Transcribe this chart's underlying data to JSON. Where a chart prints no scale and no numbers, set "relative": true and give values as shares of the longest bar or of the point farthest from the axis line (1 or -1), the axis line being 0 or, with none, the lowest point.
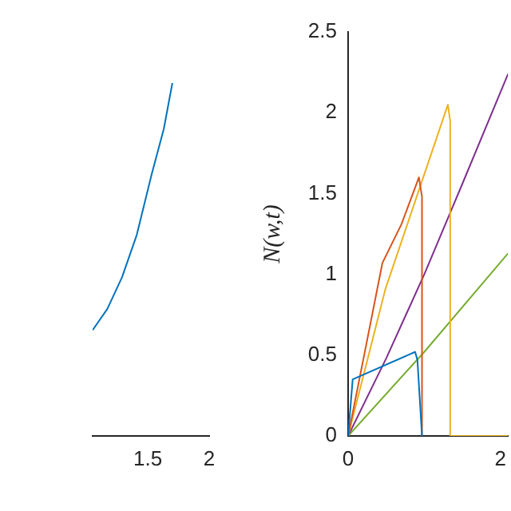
{
  "chart_data": [
    {
      "type": "line",
      "relative": true,
      "xlim": [
        1.05,
        2
      ],
      "xticks": [
        1.5,
        2
      ],
      "tick_labels": "x",
      "grid": false,
      "legend": false,
      "series": [
        {
          "color": "#0072bd",
          "x": [
            1.05,
            1.17,
            1.29,
            1.41,
            1.53,
            1.63,
            1.7
          ],
          "values": [
            0.3,
            0.36,
            0.45,
            0.57,
            0.74,
            0.87,
            1
          ]
        }
      ]
    },
    {
      "type": "line",
      "ylabel": "N(w,t)",
      "xlim": [
        0,
        2.1
      ],
      "xticks": [
        0,
        2
      ],
      "ylim": [
        0,
        2.5
      ],
      "yticks": [
        0,
        0.5,
        1,
        1.5,
        2,
        2.5
      ],
      "grid": false,
      "legend": false,
      "series": [
        {
          "color": "#0072bd",
          "x": [
            0,
            0.06,
            0.88,
            0.91,
            0.97
          ],
          "values": [
            0,
            0.35,
            0.52,
            0.47,
            0
          ]
        },
        {
          "color": "#d95319",
          "x": [
            0,
            0.24,
            0.45,
            0.7,
            0.93,
            0.97,
            0.97
          ],
          "values": [
            0,
            0.57,
            1.07,
            1.31,
            1.6,
            1.48,
            0
          ]
        },
        {
          "color": "#edb120",
          "x": [
            0,
            0.49,
            1.31,
            1.34,
            1.34,
            2.1
          ],
          "values": [
            0,
            0.91,
            2.05,
            1.95,
            0,
            0
          ]
        },
        {
          "color": "#7e2f8e",
          "x": [
            0,
            0.5,
            1,
            1.5,
            2.1
          ],
          "values": [
            0,
            0.48,
            1,
            1.56,
            2.24
          ]
        },
        {
          "color": "#77ac30",
          "x": [
            0,
            1,
            2.1
          ],
          "values": [
            0,
            0.52,
            1.13
          ]
        }
      ]
    }
  ]
}
